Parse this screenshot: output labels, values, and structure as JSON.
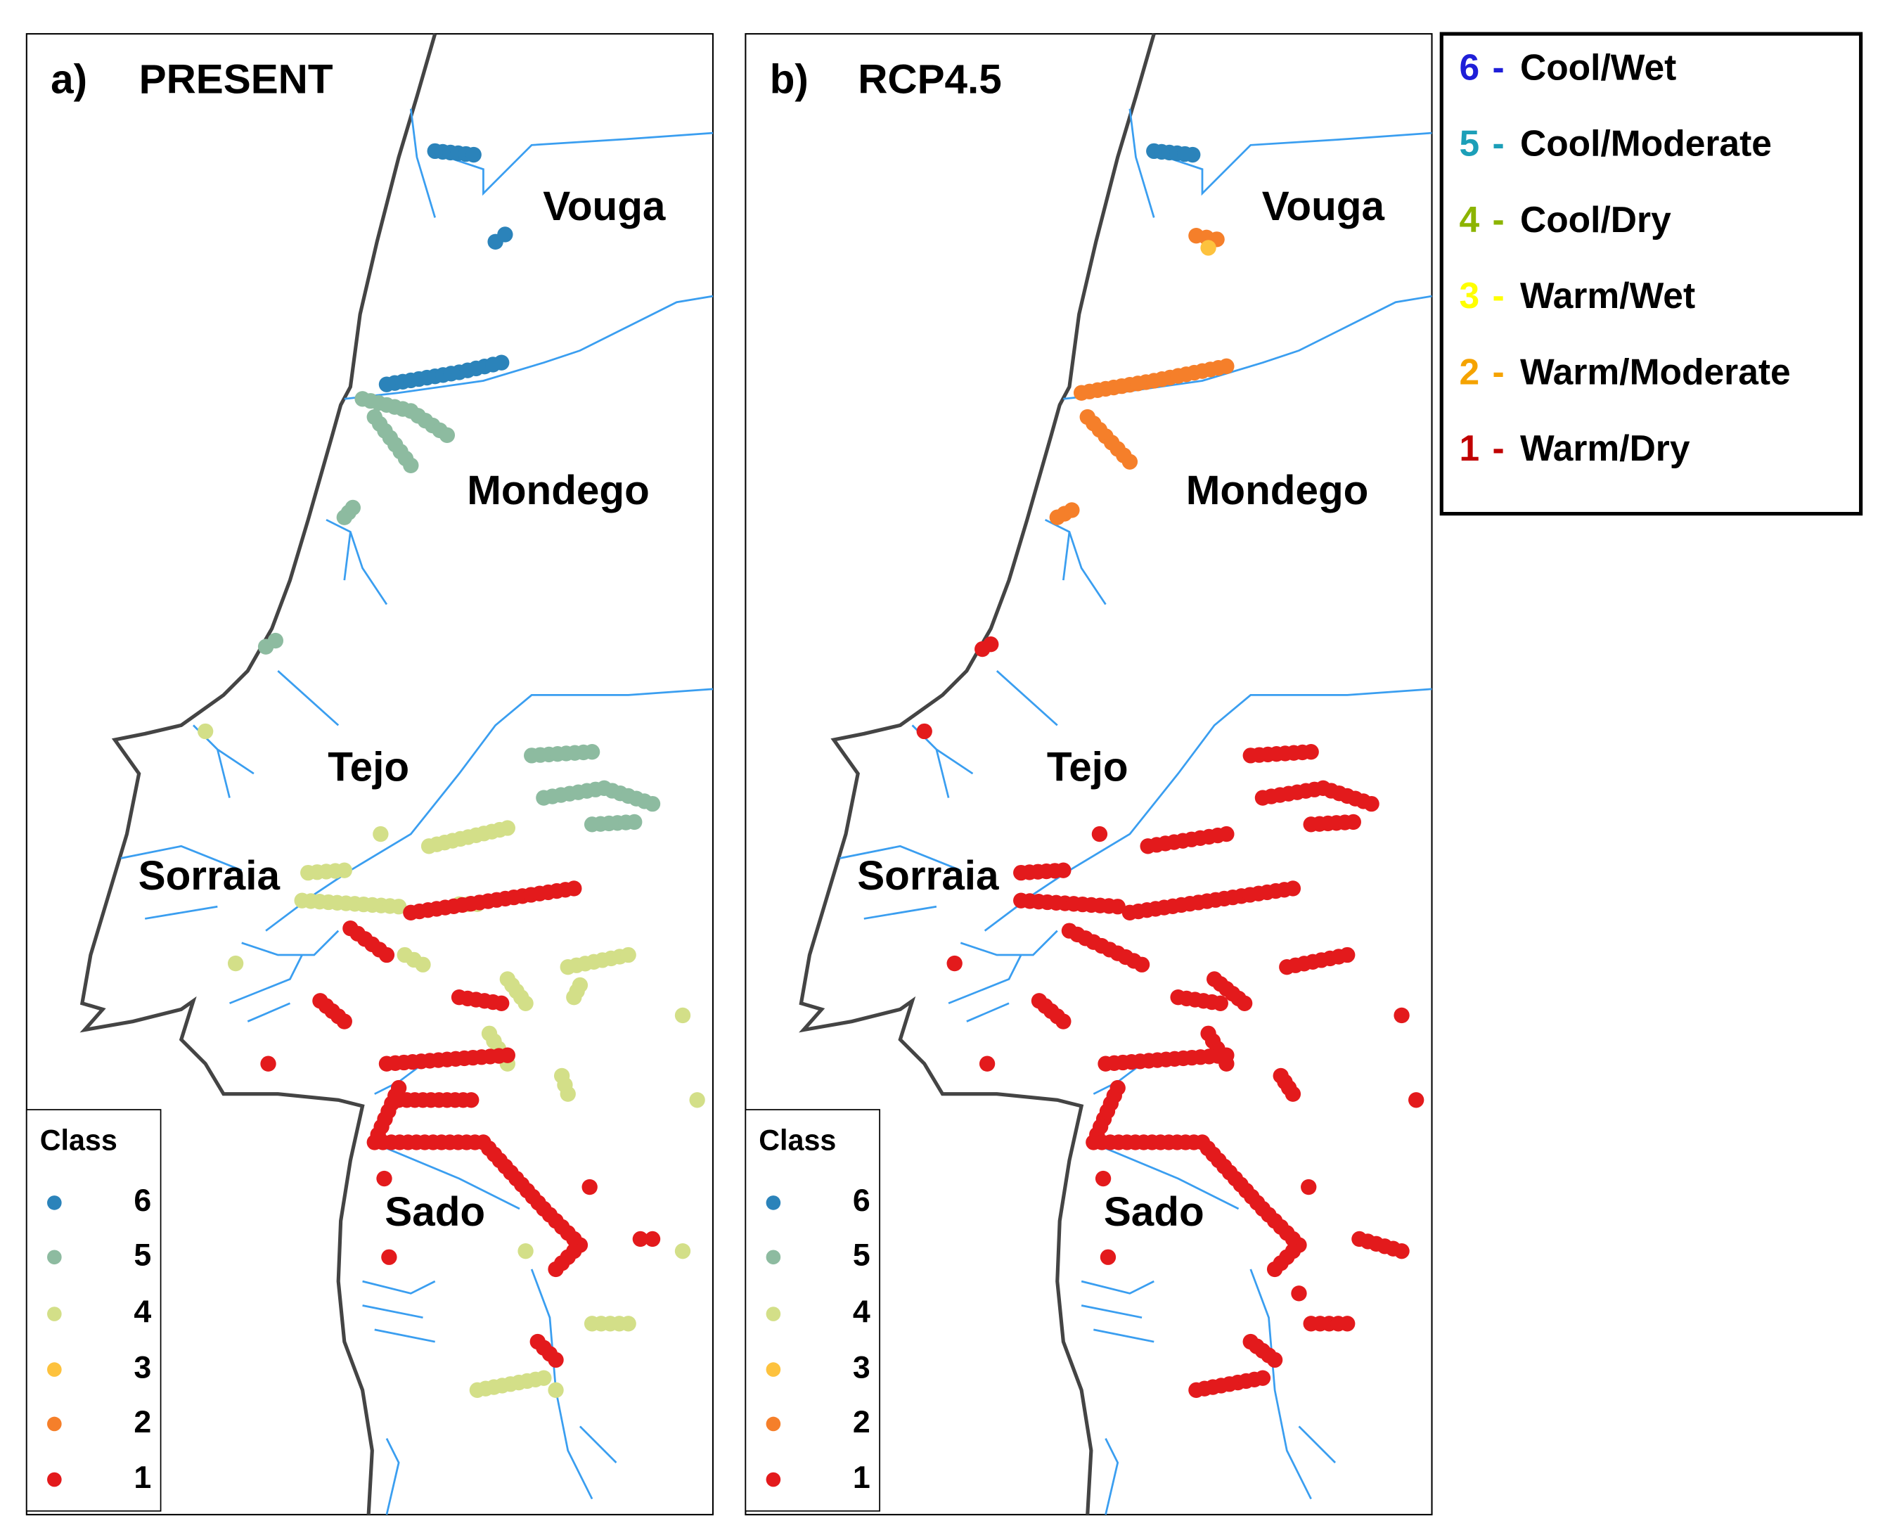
{
  "panels": [
    {
      "label": "a)",
      "title": "PRESENT"
    },
    {
      "label": "b)",
      "title": "RCP4.5"
    }
  ],
  "regions": [
    "Vouga",
    "Mondego",
    "Tejo",
    "Sorraia",
    "Sado"
  ],
  "map_legend": {
    "title": "Class",
    "classes": [
      "6",
      "5",
      "4",
      "3",
      "2",
      "1"
    ],
    "colors": [
      "#2b83ba",
      "#8dbba0",
      "#d3df88",
      "#fdc23e",
      "#f57f2a",
      "#e31a1c"
    ]
  },
  "legend": {
    "items": [
      {
        "number": "6",
        "separator": "-",
        "label": "Cool/Wet",
        "color": "#1f1fd8"
      },
      {
        "number": "5",
        "separator": "-",
        "label": "Cool/Moderate",
        "color": "#1c9fb8"
      },
      {
        "number": "4",
        "separator": "-",
        "label": "Cool/Dry",
        "color": "#8cb400"
      },
      {
        "number": "3",
        "separator": "-",
        "label": "Warm/Wet",
        "color": "#ffff00"
      },
      {
        "number": "2",
        "separator": "-",
        "label": "Warm/Moderate",
        "color": "#f5a300"
      },
      {
        "number": "1",
        "separator": "-",
        "label": "Warm/Dry",
        "color": "#c00000"
      }
    ]
  }
}
